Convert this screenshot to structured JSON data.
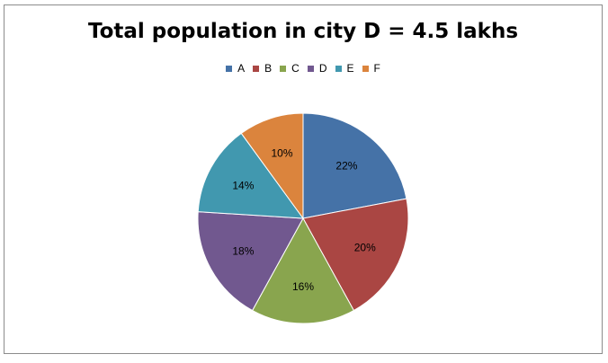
{
  "chart_data": {
    "type": "pie",
    "title": "Total population in city D = 4.5 lakhs",
    "categories": [
      "A",
      "B",
      "C",
      "D",
      "E",
      "F"
    ],
    "values": [
      22,
      20,
      16,
      18,
      14,
      10
    ],
    "labels": [
      "22%",
      "20%",
      "16%",
      "18%",
      "14%",
      "10%"
    ],
    "colors": [
      "#4572a7",
      "#aa4643",
      "#89a54e",
      "#71588f",
      "#4198af",
      "#db843d"
    ],
    "legend_position": "top",
    "start_angle": "12 o'clock",
    "direction": "clockwise"
  }
}
